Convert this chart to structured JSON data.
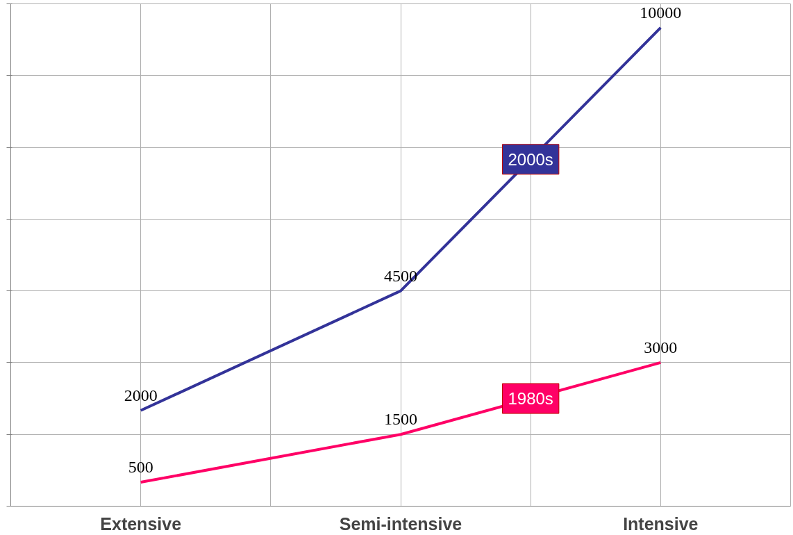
{
  "chart_data": {
    "type": "line",
    "categories": [
      "Extensive",
      "Semi-intensive",
      "Intensive"
    ],
    "series": [
      {
        "name": "2000s",
        "color": "#333399",
        "values": [
          2000,
          4500,
          10000
        ]
      },
      {
        "name": "1980s",
        "color": "#ff0066",
        "values": [
          500,
          1500,
          3000
        ]
      }
    ],
    "ylim": [
      0,
      10500
    ],
    "yticks": [
      {
        "value": 0,
        "label": null
      },
      {
        "value": 1500,
        "label": null
      },
      {
        "value": 3000,
        "label": null
      },
      {
        "value": 4500,
        "label": null
      },
      {
        "value": 6000,
        "label": null
      },
      {
        "value": 7500,
        "label": null
      },
      {
        "value": 9000,
        "label": null
      },
      {
        "value": 10500,
        "label": null
      }
    ],
    "tick_labels": "x",
    "data_labels": true,
    "grid": true,
    "legend": false,
    "marker": "none",
    "line_style": "solid"
  }
}
